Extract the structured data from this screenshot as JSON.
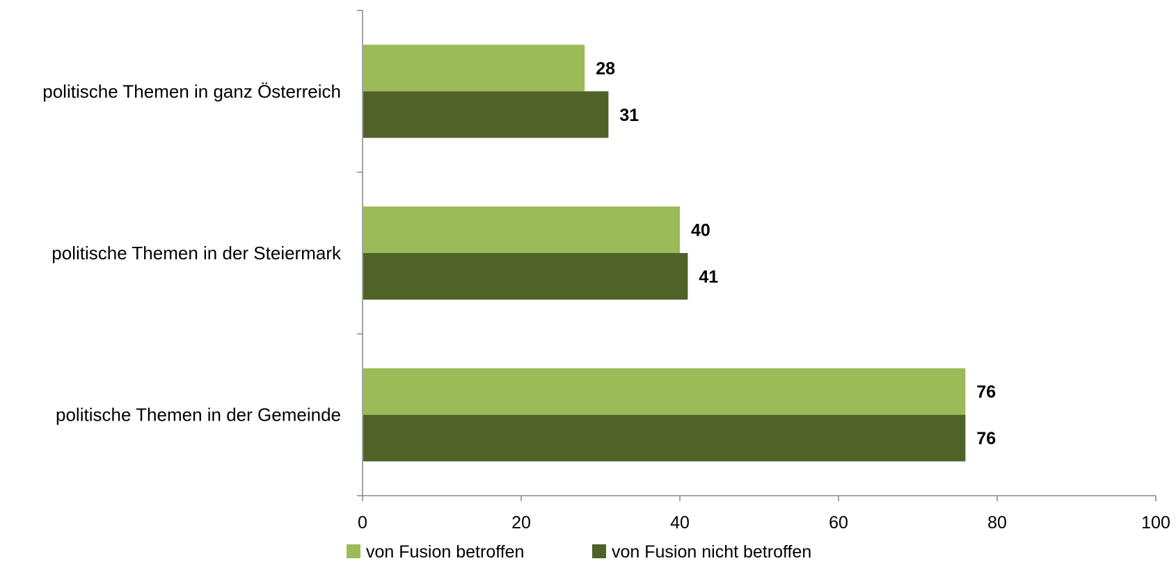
{
  "chart_data": {
    "type": "bar",
    "orientation": "horizontal",
    "categories": [
      "politische Themen in ganz Österreich",
      "politische Themen in der Steiermark",
      "politische Themen in der Gemeinde"
    ],
    "series": [
      {
        "name": "von Fusion betroffen",
        "color": "#9bbb59",
        "values": [
          28,
          40,
          76
        ]
      },
      {
        "name": "von Fusion nicht betroffen",
        "color": "#4f6228",
        "values": [
          31,
          41,
          76
        ]
      }
    ],
    "xlim": [
      0,
      100
    ],
    "x_ticks": [
      0,
      20,
      40,
      60,
      80,
      100
    ],
    "title": "",
    "xlabel": "",
    "ylabel": "",
    "grid": false,
    "legend_position": "bottom",
    "data_labels": true
  }
}
